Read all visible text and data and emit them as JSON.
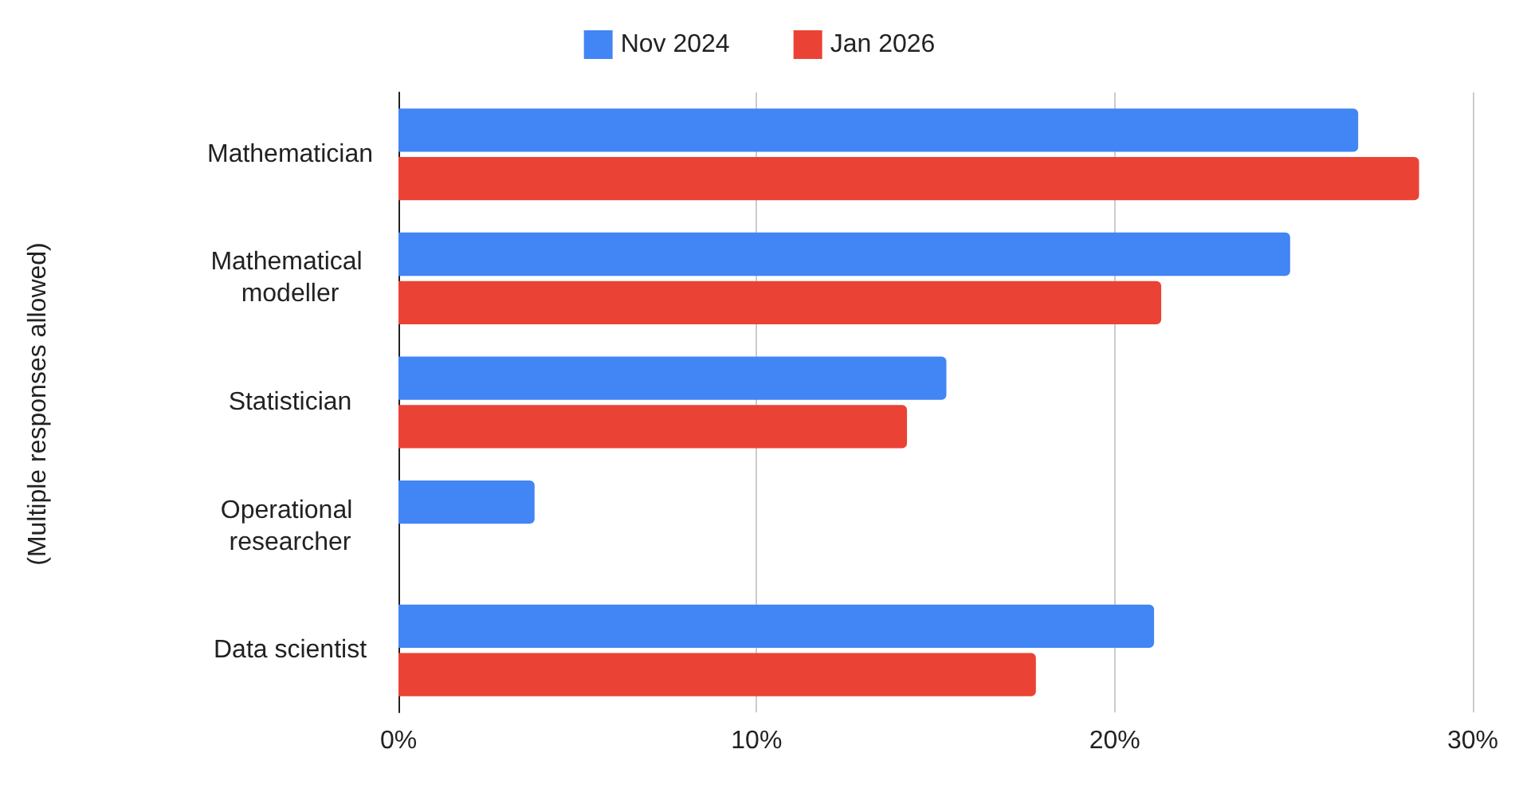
{
  "chart_data": {
    "type": "bar",
    "orientation": "horizontal",
    "annotations": [
      "(Multiple responses allowed)"
    ],
    "categories": [
      "Mathematician",
      "Mathematical modeller",
      "Statistician",
      "Operational researcher",
      "Data scientist"
    ],
    "series": [
      {
        "name": "Nov 2024",
        "color": "#4285f4",
        "values": [
          26.8,
          24.9,
          15.3,
          3.8,
          21.1
        ]
      },
      {
        "name": "Jan 2026",
        "color": "#ea4335",
        "values": [
          28.5,
          21.3,
          14.2,
          null,
          17.8
        ]
      }
    ],
    "xlim": [
      0,
      30
    ],
    "xticks": [
      {
        "value": 0,
        "label": "0%"
      },
      {
        "value": 10,
        "label": "10%"
      },
      {
        "value": 20,
        "label": "20%"
      },
      {
        "value": 30,
        "label": "30%"
      }
    ],
    "grid": "x",
    "legend": "top"
  }
}
